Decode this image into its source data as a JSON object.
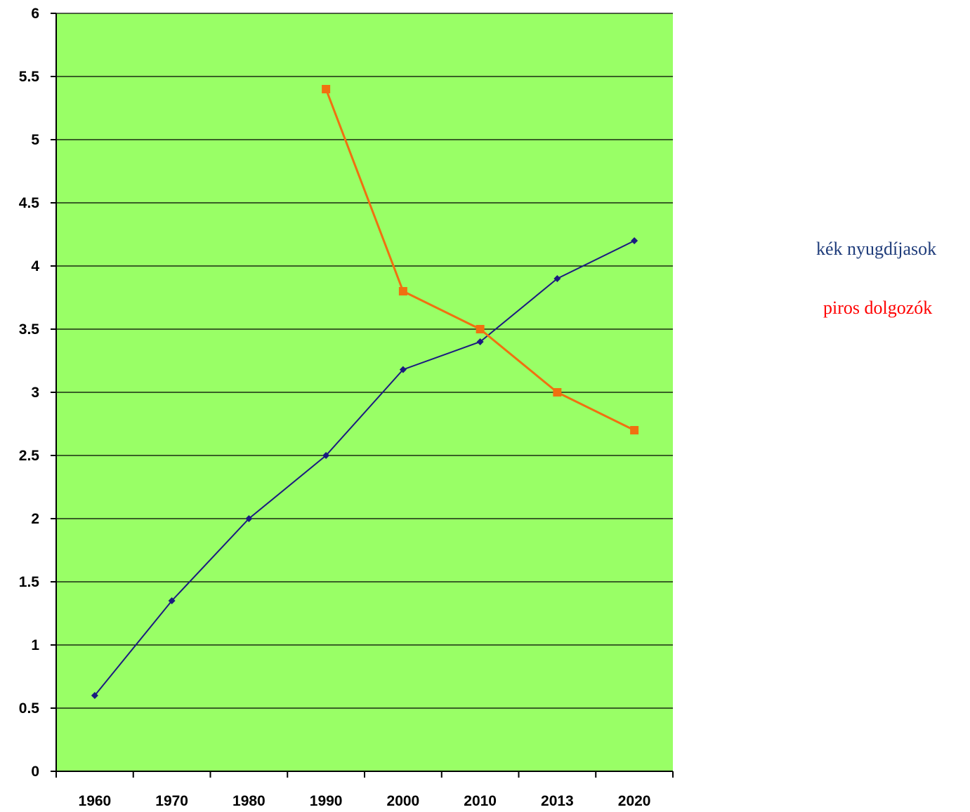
{
  "chart_data": {
    "type": "line",
    "categories": [
      "1960",
      "1970",
      "1980",
      "1990",
      "2000",
      "2010",
      "2013",
      "2020"
    ],
    "series": [
      {
        "key": "blue",
        "color": "#1a1a80",
        "marker": "diamond",
        "values": [
          0.6,
          1.35,
          2.0,
          2.5,
          3.18,
          3.4,
          3.9,
          4.2
        ]
      },
      {
        "key": "orange",
        "color": "#f07010",
        "marker": "square",
        "values": [
          null,
          null,
          null,
          5.4,
          3.8,
          3.5,
          3.0,
          2.7
        ]
      }
    ],
    "ylim": [
      0,
      6
    ],
    "yticks": [
      "0",
      "0.5",
      "1",
      "1.5",
      "2",
      "2.5",
      "3",
      "3.5",
      "4",
      "4.5",
      "5",
      "5.5",
      "6"
    ],
    "ytick_values": [
      0,
      0.5,
      1,
      1.5,
      2,
      2.5,
      3,
      3.5,
      4,
      4.5,
      5,
      5.5,
      6
    ],
    "grid": true,
    "plot_background": "#99ff66",
    "legend": [
      {
        "text": "kék nyugdíjasok",
        "color": "#1f3c7a"
      },
      {
        "text": "piros dolgozók",
        "color": "#ff0000"
      }
    ]
  }
}
